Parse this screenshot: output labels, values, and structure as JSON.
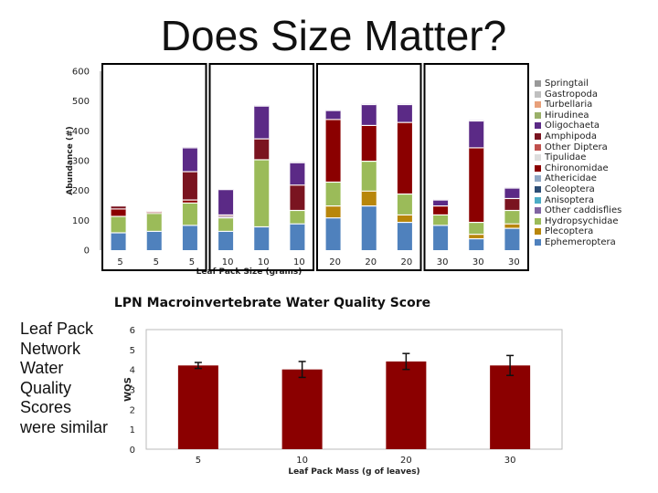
{
  "slide": {
    "title": "Does Size Matter?",
    "sidebar_text": "Leaf Pack Network Water Quality Scores were similar"
  },
  "chart_data": [
    {
      "type": "bar",
      "stacked": true,
      "title": "",
      "xlabel": "Leaf Pack Size (grams)",
      "ylabel": "Abundance (#)",
      "ylim": [
        0,
        600
      ],
      "yticks": [
        0,
        100,
        200,
        300,
        400,
        500,
        600
      ],
      "categories": [
        "5",
        "5",
        "5",
        "10",
        "10",
        "10",
        "20",
        "20",
        "20",
        "30",
        "30",
        "30"
      ],
      "series": [
        {
          "name": "Ephemeroptera",
          "color": "#4f81bd",
          "values": [
            60,
            65,
            85,
            65,
            80,
            90,
            110,
            150,
            95,
            85,
            40,
            75
          ]
        },
        {
          "name": "Plecoptera",
          "color": "#b8860b",
          "values": [
            0,
            0,
            0,
            0,
            0,
            0,
            40,
            50,
            25,
            0,
            15,
            15
          ]
        },
        {
          "name": "Hydropsychidae",
          "color": "#9bbb59",
          "values": [
            55,
            60,
            75,
            45,
            225,
            45,
            80,
            100,
            70,
            35,
            40,
            45
          ]
        },
        {
          "name": "Other caddisflies",
          "color": "#8064a2",
          "values": [
            0,
            0,
            0,
            5,
            0,
            0,
            0,
            0,
            0,
            0,
            0,
            0
          ]
        },
        {
          "name": "Anisoptera",
          "color": "#4bacc6",
          "values": [
            0,
            0,
            0,
            0,
            0,
            0,
            0,
            0,
            0,
            0,
            0,
            0
          ]
        },
        {
          "name": "Coleoptera",
          "color": "#2c4d75",
          "values": [
            0,
            0,
            0,
            0,
            0,
            0,
            0,
            0,
            0,
            0,
            0,
            0
          ]
        },
        {
          "name": "Athericidae",
          "color": "#8fa7c4",
          "values": [
            0,
            0,
            0,
            0,
            0,
            0,
            0,
            0,
            0,
            0,
            0,
            0
          ]
        },
        {
          "name": "Chironomidae",
          "color": "#8b0000",
          "values": [
            25,
            5,
            10,
            0,
            0,
            0,
            210,
            120,
            240,
            30,
            250,
            0
          ]
        },
        {
          "name": "Tipulidae",
          "color": "#dddddd",
          "values": [
            0,
            0,
            0,
            0,
            0,
            0,
            0,
            0,
            0,
            0,
            0,
            0
          ]
        },
        {
          "name": "Other Diptera",
          "color": "#c0504d",
          "values": [
            0,
            0,
            0,
            0,
            0,
            0,
            0,
            0,
            0,
            0,
            0,
            0
          ]
        },
        {
          "name": "Amphipoda",
          "color": "#7a1420",
          "values": [
            10,
            0,
            95,
            5,
            70,
            85,
            0,
            0,
            0,
            0,
            0,
            40
          ]
        },
        {
          "name": "Oligochaeta",
          "color": "#5b2a86",
          "values": [
            0,
            0,
            80,
            85,
            110,
            75,
            30,
            70,
            60,
            20,
            90,
            35
          ]
        },
        {
          "name": "Hirudinea",
          "color": "#9ab069",
          "values": [
            0,
            0,
            0,
            0,
            0,
            0,
            0,
            0,
            0,
            0,
            0,
            0
          ]
        },
        {
          "name": "Turbellaria",
          "color": "#e8a07a",
          "values": [
            0,
            0,
            0,
            0,
            0,
            0,
            0,
            0,
            0,
            0,
            0,
            0
          ]
        },
        {
          "name": "Gastropoda",
          "color": "#bfbfbf",
          "values": [
            0,
            0,
            0,
            0,
            0,
            0,
            0,
            0,
            0,
            0,
            0,
            0
          ]
        },
        {
          "name": "Springtail",
          "color": "#999999",
          "values": [
            0,
            0,
            0,
            0,
            0,
            0,
            0,
            0,
            0,
            0,
            0,
            0
          ]
        }
      ]
    },
    {
      "type": "bar",
      "title": "LPN Macroinvertebrate Water Quality Score",
      "xlabel": "Leaf Pack Mass (g of leaves)",
      "ylabel": "WQS",
      "ylim": [
        0,
        6
      ],
      "yticks": [
        0,
        1,
        2,
        3,
        4,
        5,
        6
      ],
      "categories": [
        "5",
        "10",
        "20",
        "30"
      ],
      "values": [
        4.2,
        4.0,
        4.4,
        4.2
      ],
      "error": [
        0.15,
        0.4,
        0.4,
        0.5
      ],
      "color": "#8b0000"
    }
  ],
  "legend_order": [
    "Springtail",
    "Gastropoda",
    "Turbellaria",
    "Hirudinea",
    "Oligochaeta",
    "Amphipoda",
    "Other Diptera",
    "Tipulidae",
    "Chironomidae",
    "Athericidae",
    "Coleoptera",
    "Anisoptera",
    "Other caddisflies",
    "Hydropsychidae",
    "Plecoptera",
    "Ephemeroptera"
  ]
}
